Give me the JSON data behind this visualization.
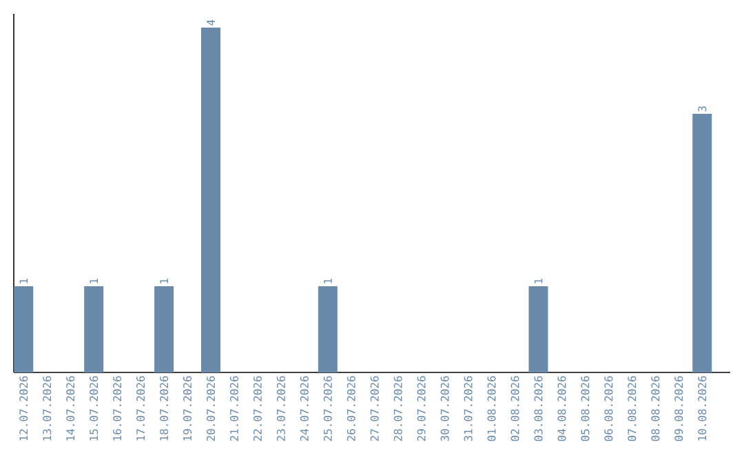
{
  "chart_data": {
    "type": "bar",
    "categories": [
      "12.07.2026",
      "13.07.2026",
      "14.07.2026",
      "15.07.2026",
      "16.07.2026",
      "17.07.2026",
      "18.07.2026",
      "19.07.2026",
      "20.07.2026",
      "21.07.2026",
      "22.07.2026",
      "23.07.2026",
      "24.07.2026",
      "25.07.2026",
      "26.07.2026",
      "27.07.2026",
      "28.07.2026",
      "29.07.2026",
      "30.07.2026",
      "31.07.2026",
      "01.08.2026",
      "02.08.2026",
      "03.08.2026",
      "04.08.2026",
      "05.08.2026",
      "06.08.2026",
      "07.08.2026",
      "08.08.2026",
      "09.08.2026",
      "10.08.2026"
    ],
    "values": [
      1,
      0,
      0,
      1,
      0,
      0,
      1,
      0,
      4,
      0,
      0,
      0,
      0,
      1,
      0,
      0,
      0,
      0,
      0,
      0,
      0,
      0,
      1,
      0,
      0,
      0,
      0,
      0,
      0,
      3
    ],
    "value_labels": [
      "1",
      null,
      null,
      "1",
      null,
      null,
      "1",
      null,
      "4",
      null,
      null,
      null,
      null,
      "1",
      null,
      null,
      null,
      null,
      null,
      null,
      null,
      null,
      "1",
      null,
      null,
      null,
      null,
      null,
      null,
      "3"
    ],
    "color": "#6a8aaa"
  }
}
